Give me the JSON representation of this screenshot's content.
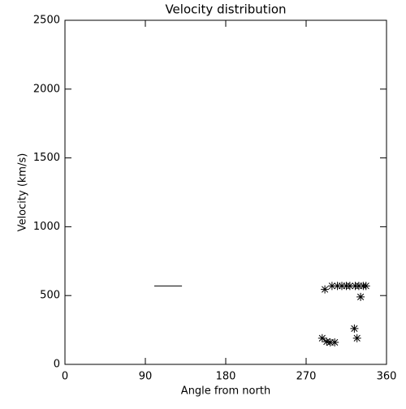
{
  "chart_data": {
    "type": "scatter",
    "title": "Velocity distribution",
    "x_label": "Angle from north",
    "y_label": "Velocity (km/s)",
    "series": [
      {
        "marker": "asterisk",
        "color": "#000000",
        "x": [
          291,
          299,
          305,
          310,
          315,
          319,
          325,
          329,
          334,
          337,
          331,
          324,
          327,
          288,
          293,
          297,
          302
        ],
        "values": [
          545,
          570,
          570,
          570,
          570,
          570,
          570,
          570,
          570,
          570,
          490,
          260,
          190,
          190,
          165,
          160,
          160
        ]
      },
      {
        "marker": "line",
        "color": "#000000",
        "x": [
          100,
          131
        ],
        "values": [
          570,
          570
        ]
      }
    ],
    "xlim": [
      0,
      360
    ],
    "xticks": [
      0,
      90,
      180,
      270,
      360
    ],
    "ylim": [
      0,
      2500
    ],
    "yticks": [
      0,
      500,
      1000,
      1500,
      2000,
      2500
    ],
    "grid": false
  }
}
